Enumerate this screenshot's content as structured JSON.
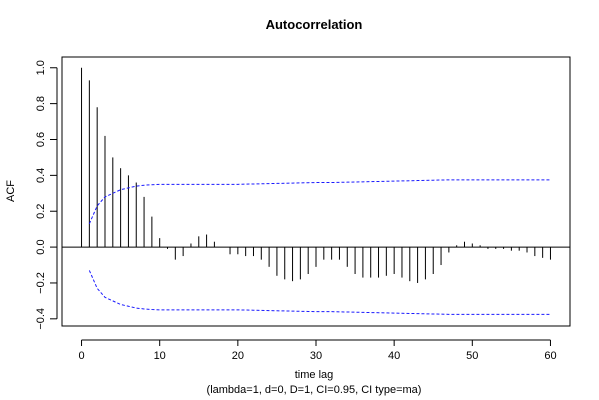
{
  "chart_data": {
    "type": "bar",
    "title": "Autocorrelation",
    "xlabel": "time lag",
    "subtitle": "(lambda=1, d=0, D=1, CI=0.95, CI type=ma)",
    "ylabel": "ACF",
    "xlim": [
      -2.5,
      62.5
    ],
    "ylim": [
      -0.44,
      1.06
    ],
    "x_ticks": [
      0,
      10,
      20,
      30,
      40,
      50,
      60
    ],
    "y_ticks": [
      -0.4,
      -0.2,
      0.0,
      0.2,
      0.4,
      0.6,
      0.8,
      1.0
    ],
    "y_tick_labels": [
      "−0.4",
      "−0.2",
      "0.0",
      "0.2",
      "0.4",
      "0.6",
      "0.8",
      "1.0"
    ],
    "lags": [
      0,
      1,
      2,
      3,
      4,
      5,
      6,
      7,
      8,
      9,
      10,
      11,
      12,
      13,
      14,
      15,
      16,
      17,
      18,
      19,
      20,
      21,
      22,
      23,
      24,
      25,
      26,
      27,
      28,
      29,
      30,
      31,
      32,
      33,
      34,
      35,
      36,
      37,
      38,
      39,
      40,
      41,
      42,
      43,
      44,
      45,
      46,
      47,
      48,
      49,
      50,
      51,
      52,
      53,
      54,
      55,
      56,
      57,
      58,
      59,
      60
    ],
    "acf": [
      1.0,
      0.93,
      0.78,
      0.62,
      0.5,
      0.44,
      0.4,
      0.36,
      0.28,
      0.17,
      0.05,
      -0.01,
      -0.07,
      -0.05,
      0.02,
      0.06,
      0.07,
      0.03,
      0.0,
      -0.04,
      -0.04,
      -0.05,
      -0.05,
      -0.07,
      -0.11,
      -0.16,
      -0.18,
      -0.19,
      -0.18,
      -0.15,
      -0.11,
      -0.07,
      -0.07,
      -0.07,
      -0.11,
      -0.15,
      -0.17,
      -0.17,
      -0.17,
      -0.16,
      -0.15,
      -0.17,
      -0.19,
      -0.2,
      -0.18,
      -0.15,
      -0.1,
      -0.03,
      0.01,
      0.03,
      0.02,
      0.01,
      -0.01,
      -0.01,
      -0.01,
      -0.02,
      -0.02,
      -0.03,
      -0.05,
      -0.06,
      -0.07
    ],
    "ci_upper": [
      null,
      0.13,
      0.23,
      0.28,
      0.3,
      0.32,
      0.33,
      0.34,
      0.345,
      0.348,
      0.35,
      0.35,
      0.35,
      0.35,
      0.35,
      0.35,
      0.35,
      0.35,
      0.35,
      0.35,
      0.35,
      0.351,
      0.352,
      0.353,
      0.354,
      0.355,
      0.356,
      0.357,
      0.358,
      0.359,
      0.36,
      0.36,
      0.36,
      0.361,
      0.362,
      0.363,
      0.364,
      0.365,
      0.366,
      0.367,
      0.368,
      0.369,
      0.37,
      0.371,
      0.372,
      0.373,
      0.374,
      0.375,
      0.375,
      0.375,
      0.375,
      0.375,
      0.375,
      0.375,
      0.375,
      0.375,
      0.375,
      0.375,
      0.375,
      0.375,
      0.375
    ],
    "ci_lower": [
      null,
      -0.13,
      -0.23,
      -0.28,
      -0.3,
      -0.32,
      -0.33,
      -0.34,
      -0.345,
      -0.348,
      -0.35,
      -0.35,
      -0.35,
      -0.35,
      -0.35,
      -0.35,
      -0.35,
      -0.35,
      -0.35,
      -0.35,
      -0.35,
      -0.351,
      -0.352,
      -0.353,
      -0.354,
      -0.355,
      -0.356,
      -0.357,
      -0.358,
      -0.359,
      -0.36,
      -0.36,
      -0.36,
      -0.361,
      -0.362,
      -0.363,
      -0.364,
      -0.365,
      -0.366,
      -0.367,
      -0.368,
      -0.369,
      -0.37,
      -0.371,
      -0.372,
      -0.373,
      -0.374,
      -0.375,
      -0.375,
      -0.375,
      -0.375,
      -0.375,
      -0.375,
      -0.375,
      -0.375,
      -0.375,
      -0.375,
      -0.375,
      -0.375,
      -0.375,
      -0.375
    ],
    "colors": {
      "bars": "#000000",
      "ci": "#1a1aff"
    }
  }
}
